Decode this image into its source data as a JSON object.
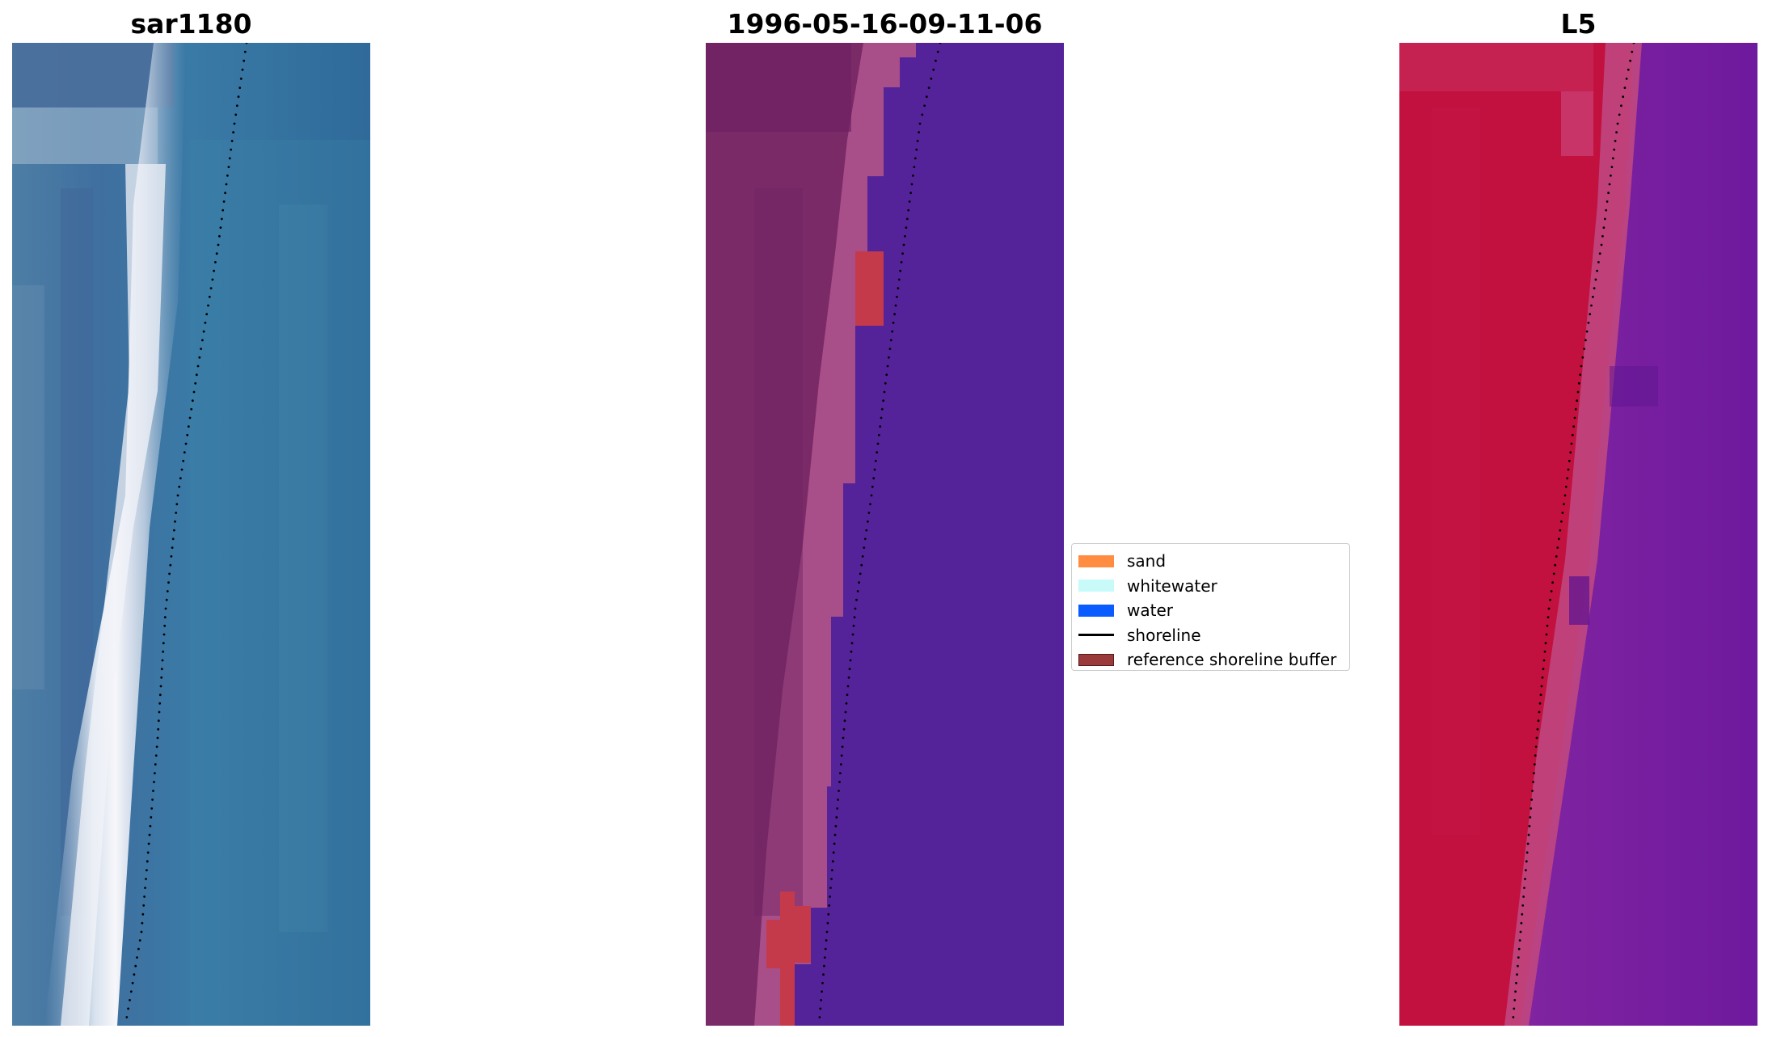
{
  "panels": [
    {
      "title": "sar1180",
      "kind": "rgb"
    },
    {
      "title": "1996-05-16-09-11-06",
      "kind": "classified"
    },
    {
      "title": "L5",
      "kind": "index"
    }
  ],
  "legend": {
    "items": [
      {
        "label": "sand",
        "color": "#ff8c40",
        "type": "patch"
      },
      {
        "label": "whitewater",
        "color": "#c8fafa",
        "type": "patch"
      },
      {
        "label": "water",
        "color": "#0a5cff",
        "type": "patch"
      },
      {
        "label": "shoreline",
        "color": "#000000",
        "type": "line"
      },
      {
        "label": "reference shoreline buffer",
        "color": "#9b3a3a",
        "type": "patch"
      }
    ]
  },
  "colors": {
    "water_blue": "#2f6fa0",
    "classified_water": "#54239a",
    "classified_land": "#7a2a67",
    "buffer_red": "#c43a4a",
    "index_land": "#c2113f",
    "index_water": "#6e199e"
  }
}
